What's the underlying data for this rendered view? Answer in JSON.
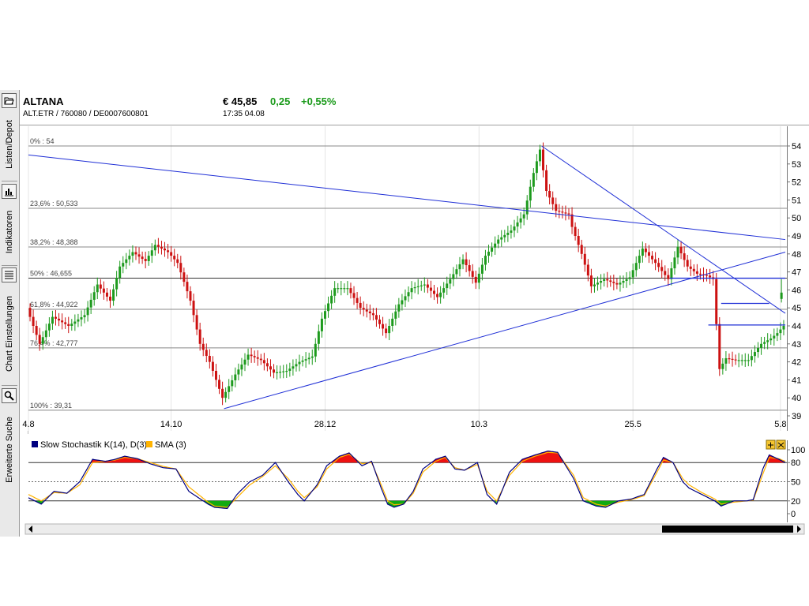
{
  "sidebar": {
    "items": [
      {
        "label": "Listen/Depot",
        "icon": "folder-open-icon"
      },
      {
        "label": "Indikatoren",
        "icon": "indicator-chart-icon"
      },
      {
        "label": "Chart Einstellungen",
        "icon": "list-settings-icon"
      },
      {
        "label": "Erweiterte Suche",
        "icon": "magnifier-icon"
      }
    ]
  },
  "header": {
    "name": "ALTANA",
    "ids": "ALT.ETR  /  760080  /  DE0007600801",
    "price": "€ 45,85",
    "change": "0,25",
    "change_pct": "+0,55%",
    "time": "17:35   04.08",
    "change_color": "#1a9a1a"
  },
  "chart_data": [
    {
      "type": "candlestick",
      "title": "",
      "x_tick_labels": [
        "4.8",
        "14.10",
        "28.12",
        "10.3",
        "25.5",
        "5.8"
      ],
      "y_ticks": [
        39,
        40,
        41,
        42,
        43,
        44,
        45,
        46,
        47,
        48,
        49,
        50,
        51,
        52,
        53,
        54
      ],
      "ylim": [
        39,
        54.1
      ],
      "grid": false,
      "fibonacci_levels": [
        {
          "label": "0% : 54",
          "value": 54
        },
        {
          "label": "23,6% : 50,533",
          "value": 50.533
        },
        {
          "label": "38,2% : 48,388",
          "value": 48.388
        },
        {
          "label": "50% : 46,655",
          "value": 46.655
        },
        {
          "label": "61,8% : 44,922",
          "value": 44.922
        },
        {
          "label": "76,4% : 42,777",
          "value": 42.777
        },
        {
          "label": "100% : 39,31",
          "value": 39.31
        }
      ],
      "colors": {
        "up": "#1d9a1d",
        "down": "#cc1111",
        "trendline": "#1f2fd6"
      },
      "price_path": [
        [
          0,
          45.0
        ],
        [
          4,
          43.0
        ],
        [
          8,
          44.5
        ],
        [
          13,
          44.0
        ],
        [
          18,
          44.6
        ],
        [
          22,
          46.3
        ],
        [
          26,
          45.4
        ],
        [
          29,
          47.3
        ],
        [
          33,
          48.1
        ],
        [
          37,
          47.6
        ],
        [
          40,
          48.5
        ],
        [
          44,
          48.1
        ],
        [
          47,
          47.5
        ],
        [
          51,
          45.4
        ],
        [
          54,
          43.0
        ],
        [
          57,
          42.0
        ],
        [
          61,
          40.0
        ],
        [
          65,
          41.3
        ],
        [
          69,
          42.4
        ],
        [
          73,
          42.1
        ],
        [
          77,
          41.4
        ],
        [
          81,
          41.5
        ],
        [
          85,
          42.0
        ],
        [
          89,
          42.3
        ],
        [
          92,
          44.4
        ],
        [
          96,
          46.1
        ],
        [
          100,
          46.1
        ],
        [
          104,
          45.0
        ],
        [
          108,
          44.6
        ],
        [
          112,
          43.6
        ],
        [
          116,
          45.2
        ],
        [
          120,
          46.1
        ],
        [
          124,
          46.3
        ],
        [
          128,
          45.6
        ],
        [
          132,
          46.6
        ],
        [
          136,
          47.7
        ],
        [
          140,
          46.4
        ],
        [
          143,
          47.9
        ],
        [
          147,
          48.8
        ],
        [
          151,
          49.3
        ],
        [
          155,
          50.2
        ],
        [
          158,
          52.5
        ],
        [
          160,
          53.8
        ],
        [
          162,
          51.5
        ],
        [
          165,
          50.4
        ],
        [
          169,
          50.2
        ],
        [
          170,
          49.5
        ],
        [
          173,
          48.0
        ],
        [
          176,
          46.2
        ],
        [
          180,
          46.6
        ],
        [
          184,
          46.3
        ],
        [
          188,
          46.7
        ],
        [
          192,
          48.3
        ],
        [
          196,
          47.5
        ],
        [
          200,
          46.6
        ],
        [
          203,
          48.4
        ],
        [
          206,
          47.3
        ],
        [
          209,
          46.9
        ],
        [
          212,
          46.8
        ],
        [
          214,
          46.6
        ],
        [
          216,
          41.6
        ],
        [
          218,
          42.2
        ],
        [
          221,
          42.1
        ],
        [
          225,
          42.1
        ],
        [
          229,
          43.0
        ],
        [
          232,
          43.3
        ],
        [
          234,
          43.6
        ],
        [
          236,
          44.0
        ]
      ],
      "last_candles": [
        {
          "open": 45.5,
          "high": 46.6,
          "low": 45.3,
          "close": 45.85
        }
      ],
      "trendlines": [
        {
          "points": [
            [
              0,
              53.5
            ],
            [
              236,
              48.8
            ]
          ]
        },
        {
          "points": [
            [
              61,
              39.4
            ],
            [
              236,
              48.1
            ]
          ]
        },
        {
          "points": [
            [
              160,
              54.0
            ],
            [
              236,
              44.7
            ]
          ]
        }
      ],
      "horizontal_segments": [
        {
          "value": 46.65,
          "from": 200,
          "to": 236
        },
        {
          "value": 45.25,
          "from": 216,
          "to": 231
        },
        {
          "value": 44.05,
          "from": 212,
          "to": 236
        }
      ]
    },
    {
      "type": "line",
      "legend_position": "top-left",
      "series": [
        {
          "name": "Slow Stochastik K(14), D(3)",
          "color": "#000080"
        },
        {
          "name": "SMA (3)",
          "color": "#ffb300"
        }
      ],
      "y_ticks": [
        0,
        20,
        50,
        80,
        100
      ],
      "ylim": [
        0,
        100
      ],
      "overbought": 80,
      "oversold": 20,
      "colors": {
        "overbought_fill": "#ee1111",
        "oversold_fill": "#11aa11"
      },
      "k_path": [
        [
          0,
          25
        ],
        [
          4,
          15
        ],
        [
          8,
          35
        ],
        [
          12,
          32
        ],
        [
          16,
          50
        ],
        [
          20,
          85
        ],
        [
          24,
          82
        ],
        [
          27,
          85
        ],
        [
          30,
          90
        ],
        [
          34,
          86
        ],
        [
          38,
          78
        ],
        [
          42,
          72
        ],
        [
          46,
          70
        ],
        [
          50,
          35
        ],
        [
          53,
          25
        ],
        [
          56,
          15
        ],
        [
          58,
          10
        ],
        [
          62,
          8
        ],
        [
          65,
          30
        ],
        [
          69,
          50
        ],
        [
          73,
          60
        ],
        [
          77,
          80
        ],
        [
          81,
          50
        ],
        [
          84,
          30
        ],
        [
          86,
          20
        ],
        [
          90,
          45
        ],
        [
          93,
          75
        ],
        [
          97,
          90
        ],
        [
          100,
          95
        ],
        [
          104,
          75
        ],
        [
          107,
          82
        ],
        [
          110,
          40
        ],
        [
          112,
          15
        ],
        [
          114,
          10
        ],
        [
          117,
          15
        ],
        [
          120,
          35
        ],
        [
          123,
          70
        ],
        [
          127,
          85
        ],
        [
          130,
          90
        ],
        [
          133,
          70
        ],
        [
          136,
          68
        ],
        [
          140,
          80
        ],
        [
          143,
          30
        ],
        [
          146,
          15
        ],
        [
          150,
          65
        ],
        [
          154,
          85
        ],
        [
          158,
          92
        ],
        [
          162,
          98
        ],
        [
          165,
          96
        ],
        [
          170,
          55
        ],
        [
          173,
          20
        ],
        [
          177,
          12
        ],
        [
          180,
          10
        ],
        [
          184,
          20
        ],
        [
          188,
          23
        ],
        [
          192,
          30
        ],
        [
          196,
          70
        ],
        [
          198,
          88
        ],
        [
          201,
          80
        ],
        [
          204,
          50
        ],
        [
          206,
          40
        ],
        [
          210,
          30
        ],
        [
          214,
          20
        ],
        [
          216,
          12
        ],
        [
          220,
          20
        ],
        [
          224,
          20
        ],
        [
          226,
          22
        ],
        [
          229,
          70
        ],
        [
          231,
          92
        ],
        [
          234,
          85
        ],
        [
          236,
          80
        ]
      ],
      "d_path": [
        [
          0,
          30
        ],
        [
          4,
          20
        ],
        [
          8,
          33
        ],
        [
          12,
          32
        ],
        [
          16,
          45
        ],
        [
          20,
          80
        ],
        [
          24,
          82
        ],
        [
          27,
          84
        ],
        [
          30,
          88
        ],
        [
          34,
          86
        ],
        [
          38,
          80
        ],
        [
          42,
          74
        ],
        [
          46,
          70
        ],
        [
          50,
          42
        ],
        [
          53,
          30
        ],
        [
          56,
          18
        ],
        [
          58,
          12
        ],
        [
          62,
          10
        ],
        [
          65,
          25
        ],
        [
          69,
          45
        ],
        [
          73,
          58
        ],
        [
          77,
          75
        ],
        [
          81,
          55
        ],
        [
          84,
          35
        ],
        [
          86,
          25
        ],
        [
          90,
          42
        ],
        [
          93,
          70
        ],
        [
          97,
          88
        ],
        [
          100,
          93
        ],
        [
          104,
          78
        ],
        [
          107,
          80
        ],
        [
          110,
          45
        ],
        [
          112,
          20
        ],
        [
          114,
          14
        ],
        [
          117,
          15
        ],
        [
          120,
          32
        ],
        [
          123,
          65
        ],
        [
          127,
          82
        ],
        [
          130,
          88
        ],
        [
          133,
          72
        ],
        [
          136,
          68
        ],
        [
          140,
          77
        ],
        [
          143,
          35
        ],
        [
          146,
          20
        ],
        [
          150,
          60
        ],
        [
          154,
          82
        ],
        [
          158,
          90
        ],
        [
          162,
          96
        ],
        [
          165,
          95
        ],
        [
          170,
          60
        ],
        [
          173,
          25
        ],
        [
          177,
          15
        ],
        [
          180,
          12
        ],
        [
          184,
          18
        ],
        [
          188,
          22
        ],
        [
          192,
          28
        ],
        [
          196,
          65
        ],
        [
          198,
          84
        ],
        [
          201,
          80
        ],
        [
          204,
          55
        ],
        [
          206,
          45
        ],
        [
          210,
          33
        ],
        [
          214,
          23
        ],
        [
          216,
          15
        ],
        [
          220,
          18
        ],
        [
          224,
          20
        ],
        [
          226,
          21
        ],
        [
          229,
          62
        ],
        [
          231,
          88
        ],
        [
          234,
          86
        ],
        [
          236,
          82
        ]
      ]
    }
  ]
}
